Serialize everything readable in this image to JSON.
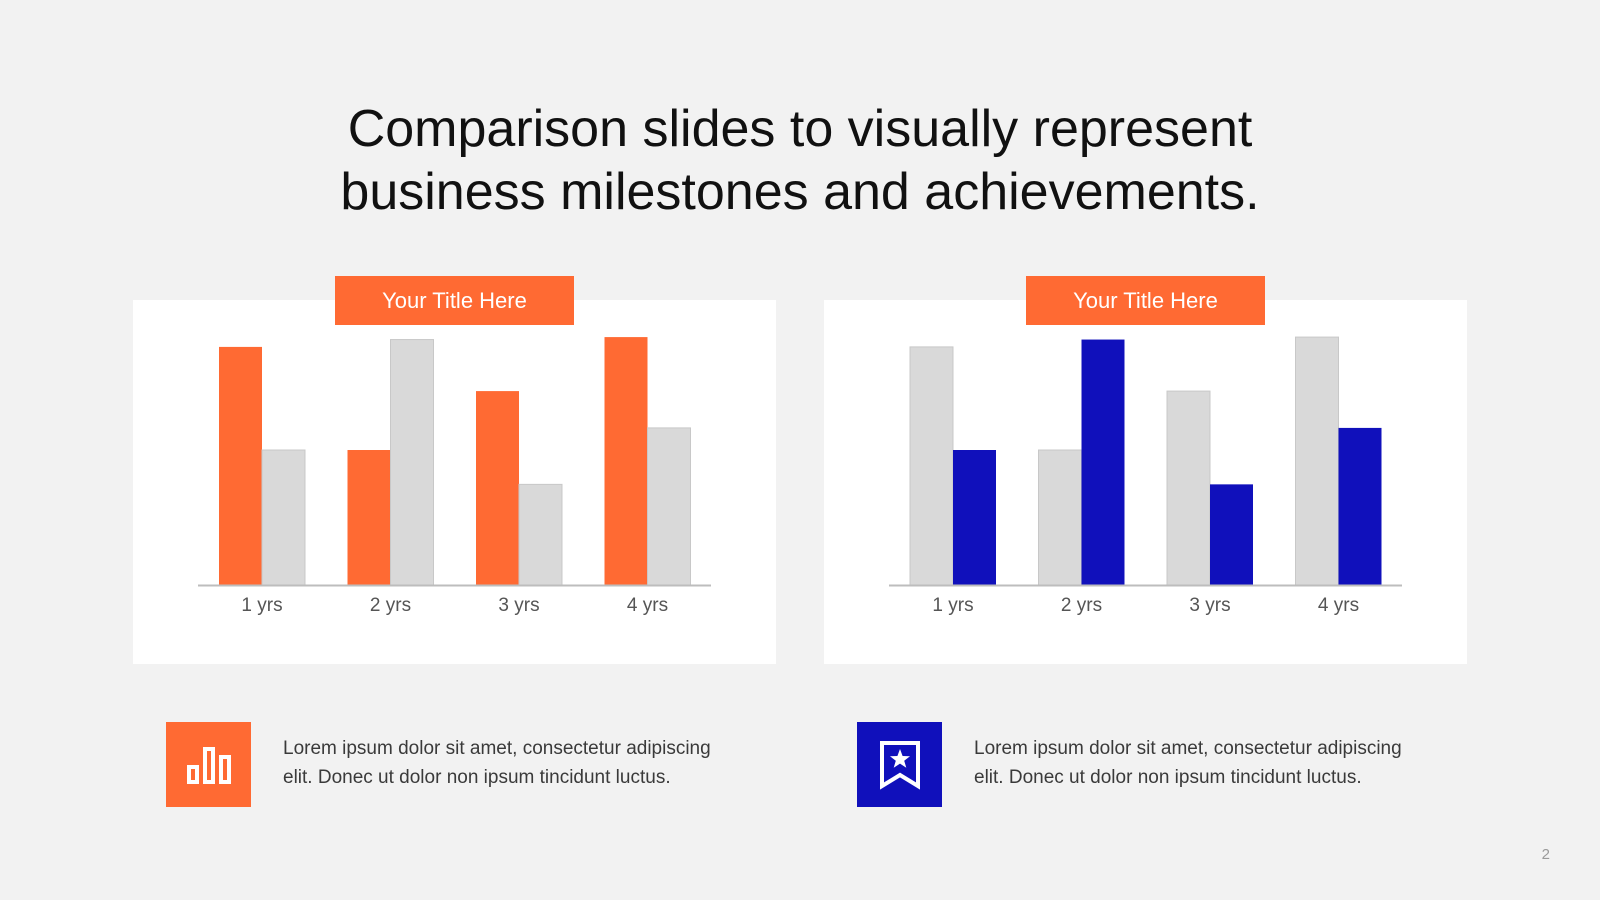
{
  "slide": {
    "title_line1": "Comparison slides to visually represent",
    "title_line2": "business milestones and achievements.",
    "page_number": "2"
  },
  "panels": [
    {
      "tab_label": "Your Title Here"
    },
    {
      "tab_label": "Your Title Here"
    }
  ],
  "features": [
    {
      "icon": "bar-chart-icon",
      "icon_bg": "#ff6a33",
      "text": "Lorem ipsum dolor sit amet, consectetur adipiscing elit. Donec ut dolor non ipsum tincidunt luctus."
    },
    {
      "icon": "bookmark-star-icon",
      "icon_bg": "#1010bb",
      "text": "Lorem ipsum dolor sit amet, consectetur adipiscing elit. Donec ut dolor non ipsum tincidunt luctus."
    }
  ],
  "chart_data": [
    {
      "type": "bar",
      "categories": [
        "1 yrs",
        "2 yrs",
        "3 yrs",
        "4 yrs"
      ],
      "series": [
        {
          "values": [
            97,
            55,
            79,
            101
          ],
          "color": "#ff6a33"
        },
        {
          "values": [
            55,
            100,
            41,
            64
          ],
          "color": "#d9d9d9"
        }
      ],
      "ylim": [
        0,
        110
      ],
      "grid": false,
      "legend": "none"
    },
    {
      "type": "bar",
      "categories": [
        "1 yrs",
        "2 yrs",
        "3 yrs",
        "4 yrs"
      ],
      "series": [
        {
          "values": [
            97,
            55,
            79,
            101
          ],
          "color": "#d9d9d9"
        },
        {
          "values": [
            55,
            100,
            41,
            64
          ],
          "color": "#1010bb"
        }
      ],
      "ylim": [
        0,
        110
      ],
      "grid": false,
      "legend": "none"
    }
  ]
}
